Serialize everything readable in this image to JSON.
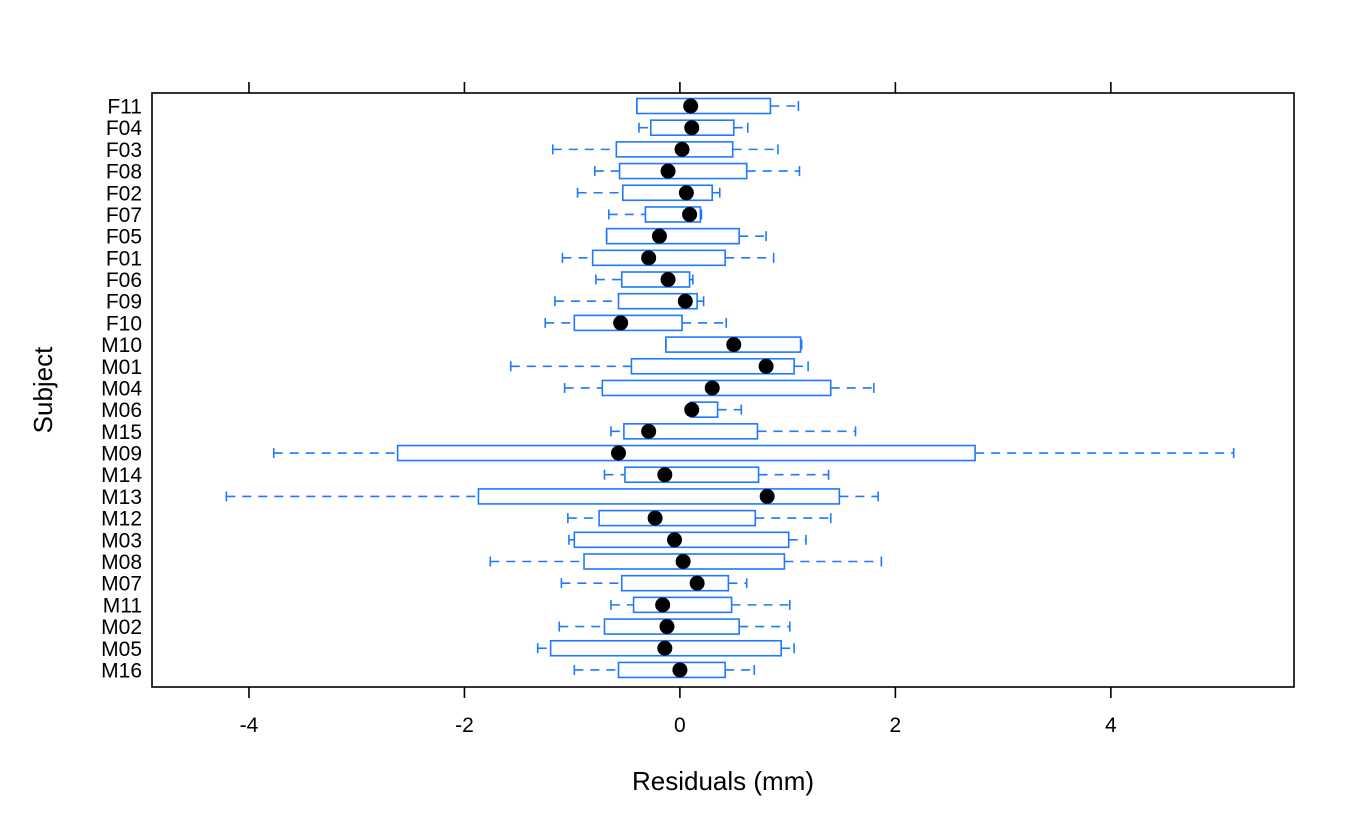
{
  "chart_data": {
    "type": "boxplot",
    "orientation": "horizontal",
    "title": "",
    "xlabel": "Residuals (mm)",
    "ylabel": "Subject",
    "xlim": [
      -4.9,
      5.7
    ],
    "xticks": [
      -4,
      -2,
      0,
      2,
      4
    ],
    "xtick_labels": [
      "-4",
      "-2",
      "0",
      "2",
      "4"
    ],
    "grid": false,
    "box_color": "#1f78ff",
    "median_color": "#000000",
    "categories": [
      "F11",
      "F04",
      "F03",
      "F08",
      "F02",
      "F07",
      "F05",
      "F01",
      "F06",
      "F09",
      "F10",
      "M10",
      "M01",
      "M04",
      "M06",
      "M15",
      "M09",
      "M14",
      "M13",
      "M12",
      "M03",
      "M08",
      "M07",
      "M11",
      "M02",
      "M05",
      "M16"
    ],
    "boxes": [
      {
        "label": "F11",
        "whisker_low": -0.4,
        "q1": -0.4,
        "median": 0.1,
        "q3": 0.84,
        "whisker_high": 1.1
      },
      {
        "label": "F04",
        "whisker_low": -0.38,
        "q1": -0.27,
        "median": 0.11,
        "q3": 0.5,
        "whisker_high": 0.63
      },
      {
        "label": "F03",
        "whisker_low": -1.18,
        "q1": -0.59,
        "median": 0.02,
        "q3": 0.49,
        "whisker_high": 0.91
      },
      {
        "label": "F08",
        "whisker_low": -0.79,
        "q1": -0.56,
        "median": -0.11,
        "q3": 0.62,
        "whisker_high": 1.11
      },
      {
        "label": "F02",
        "whisker_low": -0.95,
        "q1": -0.53,
        "median": 0.06,
        "q3": 0.3,
        "whisker_high": 0.37
      },
      {
        "label": "F07",
        "whisker_low": -0.66,
        "q1": -0.32,
        "median": 0.09,
        "q3": 0.19,
        "whisker_high": 0.2
      },
      {
        "label": "F05",
        "whisker_low": -0.68,
        "q1": -0.68,
        "median": -0.19,
        "q3": 0.55,
        "whisker_high": 0.8
      },
      {
        "label": "F01",
        "whisker_low": -1.09,
        "q1": -0.81,
        "median": -0.29,
        "q3": 0.42,
        "whisker_high": 0.87
      },
      {
        "label": "F06",
        "whisker_low": -0.78,
        "q1": -0.54,
        "median": -0.11,
        "q3": 0.09,
        "whisker_high": 0.12
      },
      {
        "label": "F09",
        "whisker_low": -1.16,
        "q1": -0.57,
        "median": 0.05,
        "q3": 0.16,
        "whisker_high": 0.22
      },
      {
        "label": "F10",
        "whisker_low": -1.25,
        "q1": -0.98,
        "median": -0.55,
        "q3": 0.02,
        "whisker_high": 0.43
      },
      {
        "label": "M10",
        "whisker_low": -0.13,
        "q1": -0.13,
        "median": 0.5,
        "q3": 1.12,
        "whisker_high": 1.13
      },
      {
        "label": "M01",
        "whisker_low": -1.57,
        "q1": -0.45,
        "median": 0.8,
        "q3": 1.06,
        "whisker_high": 1.19
      },
      {
        "label": "M04",
        "whisker_low": -1.07,
        "q1": -0.72,
        "median": 0.3,
        "q3": 1.4,
        "whisker_high": 1.8
      },
      {
        "label": "M06",
        "whisker_low": 0.1,
        "q1": 0.1,
        "median": 0.11,
        "q3": 0.35,
        "whisker_high": 0.57
      },
      {
        "label": "M15",
        "whisker_low": -0.64,
        "q1": -0.52,
        "median": -0.29,
        "q3": 0.72,
        "whisker_high": 1.63
      },
      {
        "label": "M09",
        "whisker_low": -3.77,
        "q1": -2.62,
        "median": -0.57,
        "q3": 2.74,
        "whisker_high": 5.14
      },
      {
        "label": "M14",
        "whisker_low": -0.7,
        "q1": -0.51,
        "median": -0.14,
        "q3": 0.73,
        "whisker_high": 1.38
      },
      {
        "label": "M13",
        "whisker_low": -4.21,
        "q1": -1.87,
        "median": 0.81,
        "q3": 1.48,
        "whisker_high": 1.84
      },
      {
        "label": "M12",
        "whisker_low": -1.04,
        "q1": -0.75,
        "median": -0.23,
        "q3": 0.7,
        "whisker_high": 1.4
      },
      {
        "label": "M03",
        "whisker_low": -1.03,
        "q1": -0.98,
        "median": -0.05,
        "q3": 1.01,
        "whisker_high": 1.17
      },
      {
        "label": "M08",
        "whisker_low": -1.76,
        "q1": -0.89,
        "median": 0.03,
        "q3": 0.97,
        "whisker_high": 1.87
      },
      {
        "label": "M07",
        "whisker_low": -1.1,
        "q1": -0.54,
        "median": 0.16,
        "q3": 0.45,
        "whisker_high": 0.62
      },
      {
        "label": "M11",
        "whisker_low": -0.64,
        "q1": -0.43,
        "median": -0.16,
        "q3": 0.48,
        "whisker_high": 1.02
      },
      {
        "label": "M02",
        "whisker_low": -1.12,
        "q1": -0.7,
        "median": -0.12,
        "q3": 0.55,
        "whisker_high": 1.02
      },
      {
        "label": "M05",
        "whisker_low": -1.32,
        "q1": -1.2,
        "median": -0.14,
        "q3": 0.94,
        "whisker_high": 1.06
      },
      {
        "label": "M16",
        "whisker_low": -0.98,
        "q1": -0.57,
        "median": 0.0,
        "q3": 0.42,
        "whisker_high": 0.69
      }
    ]
  }
}
